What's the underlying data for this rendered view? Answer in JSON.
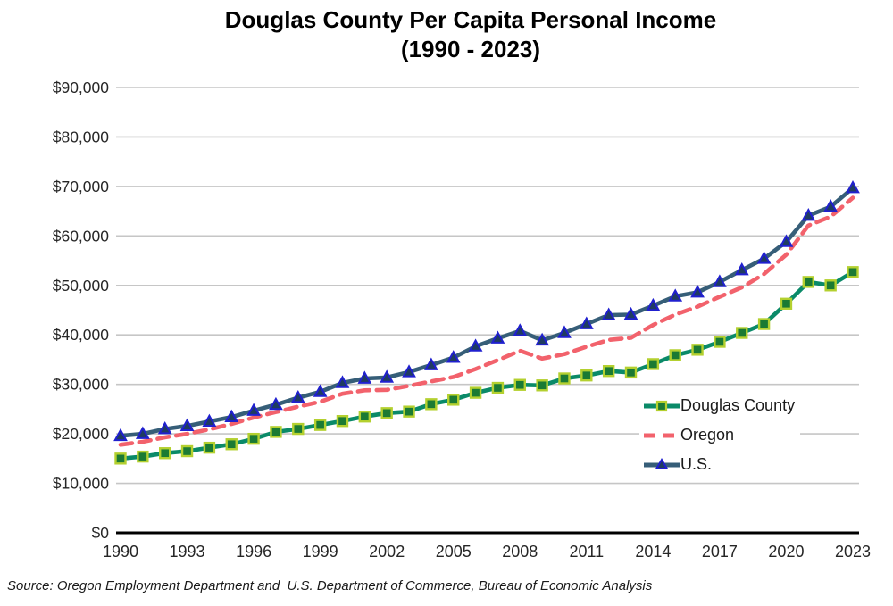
{
  "title": {
    "line1": "Douglas County Per Capita Personal Income",
    "line2": "(1990 - 2023)"
  },
  "source": "Source: Oregon Employment Department and  U.S. Department of Commerce, Bureau of Economic Analysis",
  "chart_data": {
    "type": "line",
    "title": "Douglas County Per Capita Personal Income (1990 - 2023)",
    "xlabel": "",
    "ylabel": "",
    "grid": "horizontal",
    "legend_position": "inside-right",
    "ylim": [
      0,
      90000
    ],
    "y_ticks": [
      {
        "value": 0,
        "label": "$0"
      },
      {
        "value": 10000,
        "label": "$10,000"
      },
      {
        "value": 20000,
        "label": "$20,000"
      },
      {
        "value": 30000,
        "label": "$30,000"
      },
      {
        "value": 40000,
        "label": "$40,000"
      },
      {
        "value": 50000,
        "label": "$50,000"
      },
      {
        "value": 60000,
        "label": "$60,000"
      },
      {
        "value": 70000,
        "label": "$70,000"
      },
      {
        "value": 80000,
        "label": "$80,000"
      },
      {
        "value": 90000,
        "label": "$90,000"
      }
    ],
    "x": [
      1990,
      1991,
      1992,
      1993,
      1994,
      1995,
      1996,
      1997,
      1998,
      1999,
      2000,
      2001,
      2002,
      2003,
      2004,
      2005,
      2006,
      2007,
      2008,
      2009,
      2010,
      2011,
      2012,
      2013,
      2014,
      2015,
      2016,
      2017,
      2018,
      2019,
      2020,
      2021,
      2022,
      2023
    ],
    "x_tick_labels": [
      "1990",
      "1993",
      "1996",
      "1999",
      "2002",
      "2005",
      "2008",
      "2011",
      "2014",
      "2017",
      "2020",
      "2023"
    ],
    "series": [
      {
        "name": "Douglas County",
        "line_color": "#0a8a68",
        "marker": "square",
        "marker_fill": "#1b7a33",
        "marker_stroke": "#b4d02f",
        "dash": null,
        "values": [
          15000,
          15400,
          16100,
          16500,
          17200,
          17900,
          19000,
          20400,
          21000,
          21800,
          22600,
          23500,
          24200,
          24500,
          26000,
          26900,
          28300,
          29300,
          29900,
          29800,
          31200,
          31800,
          32700,
          32400,
          34100,
          35900,
          37000,
          38600,
          40400,
          42200,
          46300,
          50700,
          50000,
          52700
        ]
      },
      {
        "name": "Oregon",
        "line_color": "#f2626c",
        "marker": "none",
        "marker_fill": null,
        "marker_stroke": null,
        "dash": [
          13,
          8
        ],
        "values": [
          17800,
          18400,
          19300,
          20000,
          20900,
          22000,
          23300,
          24400,
          25500,
          26500,
          28100,
          28800,
          28900,
          29700,
          30600,
          31500,
          33100,
          34900,
          36800,
          35200,
          36100,
          37600,
          39000,
          39400,
          42000,
          44100,
          45700,
          47700,
          49600,
          52300,
          56200,
          62100,
          63900,
          67700
        ]
      },
      {
        "name": "U.S.",
        "line_color": "#365e78",
        "marker": "triangle",
        "marker_fill": "#1f3c61",
        "marker_stroke": "#2020cf",
        "dash": null,
        "values": [
          19600,
          20000,
          21000,
          21600,
          22500,
          23400,
          24700,
          25900,
          27300,
          28500,
          30300,
          31200,
          31400,
          32500,
          33900,
          35400,
          37700,
          39300,
          40800,
          38900,
          40400,
          42200,
          44000,
          44100,
          45900,
          47800,
          48600,
          50700,
          53100,
          55400,
          58800,
          64100,
          65900,
          69700
        ]
      }
    ]
  }
}
